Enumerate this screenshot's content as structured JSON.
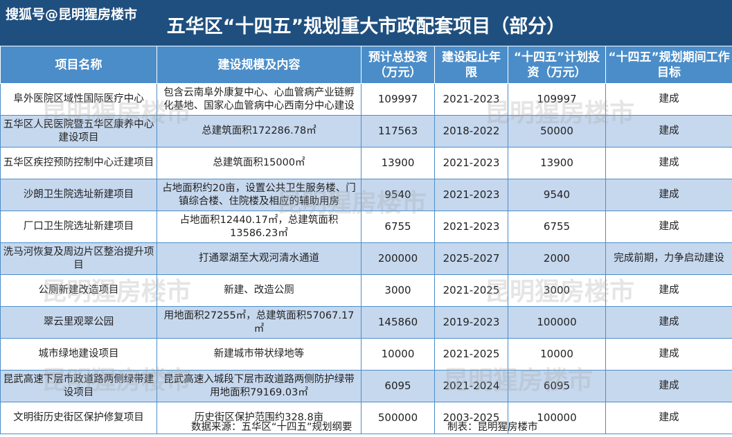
{
  "header": {
    "source_tag": "搜狐号@昆明猩房楼市",
    "title": "五华区“十四五”规划重大市政配套项目（部分）"
  },
  "table": {
    "columns": [
      "项目名称",
      "建设规模及内容",
      "预计总投资（万元）",
      "建设起止年限",
      "“十四五”计划投资（万元）",
      "“十四五”规划期间工作目标"
    ],
    "rows": [
      {
        "name": "阜外医院区域性国际医疗中心",
        "scope": "包含云南阜外康复中心、心血管病产业链孵化基地、国家心血管病中心西南分中心建设",
        "total": "109997",
        "years": "2021-2023",
        "plan": "109997",
        "goal": "建成"
      },
      {
        "name": "五华区人民医院暨五华区康养中心建设项目",
        "scope": "总建筑面积172286.78㎡",
        "total": "117563",
        "years": "2018-2022",
        "plan": "50000",
        "goal": "建成"
      },
      {
        "name": "五华区疾控预防控制中心迁建项目",
        "scope": "总建筑面积15000㎡",
        "total": "13900",
        "years": "2021-2023",
        "plan": "13900",
        "goal": "建成"
      },
      {
        "name": "沙朗卫生院选址新建项目",
        "scope": "占地面积约20亩，设置公共卫生服务楼、门镇综合楼、住院楼及相应的辅助用房",
        "total": "9540",
        "years": "2021-2023",
        "plan": "9540",
        "goal": "建成"
      },
      {
        "name": "厂口卫生院选址新建项目",
        "scope": "占地面积12440.17㎡，总建筑面积13586.23㎡",
        "total": "6755",
        "years": "2021-2023",
        "plan": "6755",
        "goal": "建成"
      },
      {
        "name": "洗马河恢复及周边片区整治提升项目",
        "scope": "打通翠湖至大观河清水通道",
        "total": "200000",
        "years": "2025-2027",
        "plan": "2000",
        "goal": "完成前期，力争启动建设"
      },
      {
        "name": "公厕新建改造项目",
        "scope": "新建、改造公厕",
        "total": "3000",
        "years": "2021-2025",
        "plan": "3000",
        "goal": "建成"
      },
      {
        "name": "翠云里观翠公园",
        "scope": "用地面积27255㎡，总建筑面积57067.17㎡",
        "total": "145860",
        "years": "2019-2023",
        "plan": "100000",
        "goal": "建成"
      },
      {
        "name": "城市绿地建设项目",
        "scope": "新建城市带状绿地等",
        "total": "10000",
        "years": "2021-2025",
        "plan": "10000",
        "goal": "建成"
      },
      {
        "name": "昆武高速下层市政道路两侧绿带建设项目",
        "scope": "昆武高速入城段下层市政道路两侧防护绿带用地面积79169.03㎡",
        "total": "6095",
        "years": "2021-2024",
        "plan": "6095",
        "goal": "建成"
      },
      {
        "name": "文明街历史街区保护修复项目",
        "scope": "历史街区保护范围约328.8亩",
        "total": "500000",
        "years": "2003-2025",
        "plan": "100000",
        "goal": "建成"
      }
    ]
  },
  "footer": {
    "source": "数据来源：五华区“十四五”规划纲要",
    "maker": "制表：昆明猩房楼市"
  },
  "watermark": "昆明猩房楼市"
}
